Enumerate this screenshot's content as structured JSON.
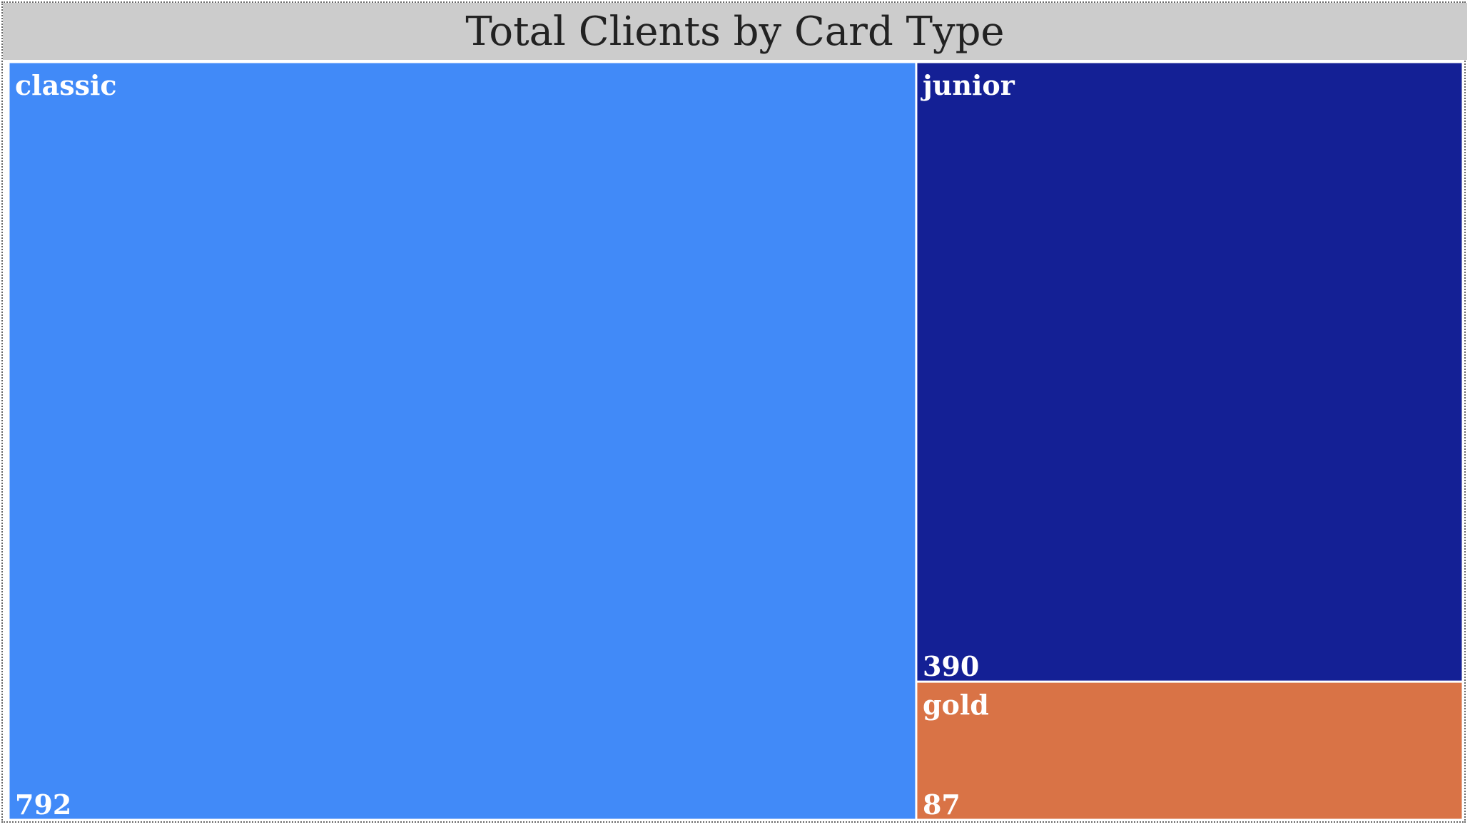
{
  "chart_data": {
    "type": "treemap",
    "title": "Total Clients by Card Type",
    "categories": [
      "classic",
      "junior",
      "gold"
    ],
    "values": [
      792,
      390,
      87
    ],
    "colors": [
      "#418af8",
      "#142095",
      "#d97346"
    ]
  }
}
